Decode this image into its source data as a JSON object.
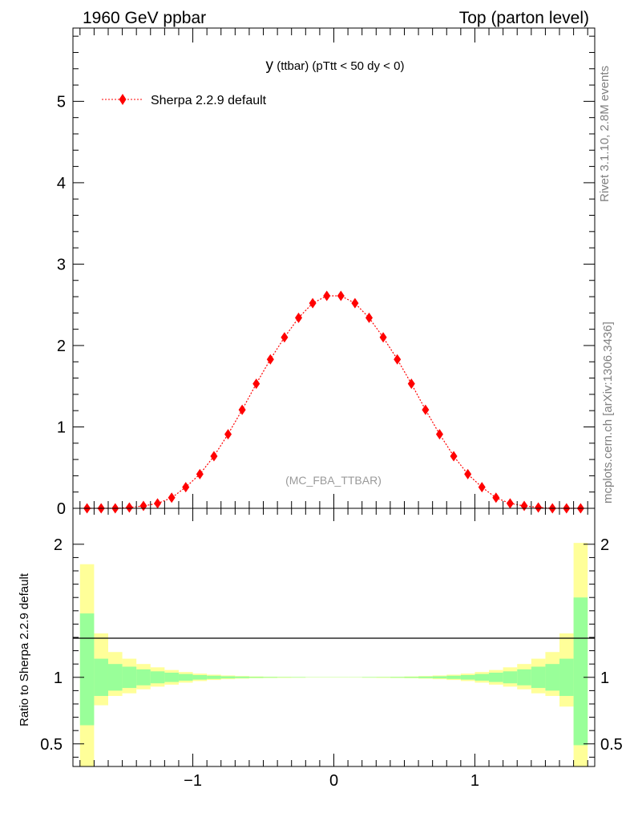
{
  "header": {
    "left": "1960 GeV ppbar",
    "right": "Top (parton level)"
  },
  "side_labels": {
    "rivet": "Rivet 3.1.10,  2.8M events",
    "mcplots": "mcplots.cern.ch [arXiv:1306.3436]"
  },
  "plot_title": {
    "main": "y",
    "detail": " (ttbar) (pTtt < 50 dy < 0)"
  },
  "legend": {
    "label": "Sherpa 2.2.9 default",
    "color": "#ff0000"
  },
  "watermark": "(MC_FBA_TTBAR)",
  "ratio_ylabel": "Ratio to Sherpa 2.2.9 default",
  "colors": {
    "series": "#ff0000",
    "band_inner": "#99ff99",
    "band_outer": "#ffff99",
    "side_text": "#808080"
  },
  "chart_data": [
    {
      "type": "line",
      "markers": "diamond",
      "line_style": "dotted",
      "xlim": [
        -1.85,
        1.85
      ],
      "ylim": [
        0,
        5.9
      ],
      "xticks": [
        -1,
        0,
        1
      ],
      "yticks": [
        0,
        1,
        2,
        3,
        4,
        5
      ],
      "ytick_labels": [
        "0",
        "1",
        "2",
        "3",
        "4",
        "5"
      ],
      "series": [
        {
          "name": "Sherpa 2.2.9 default",
          "x": [
            -1.75,
            -1.65,
            -1.55,
            -1.45,
            -1.35,
            -1.25,
            -1.15,
            -1.05,
            -0.95,
            -0.85,
            -0.75,
            -0.65,
            -0.55,
            -0.45,
            -0.35,
            -0.25,
            -0.15,
            -0.05,
            0.05,
            0.15,
            0.25,
            0.35,
            0.45,
            0.55,
            0.65,
            0.75,
            0.85,
            0.95,
            1.05,
            1.15,
            1.25,
            1.35,
            1.45,
            1.55,
            1.65,
            1.75
          ],
          "y": [
            0.0,
            0.0,
            0.0,
            0.01,
            0.03,
            0.06,
            0.13,
            0.26,
            0.42,
            0.64,
            0.91,
            1.21,
            1.53,
            1.83,
            2.1,
            2.34,
            2.52,
            2.61,
            2.61,
            2.52,
            2.34,
            2.1,
            1.83,
            1.53,
            1.21,
            0.91,
            0.64,
            0.42,
            0.26,
            0.13,
            0.06,
            0.03,
            0.01,
            0.0,
            0.0,
            0.0
          ]
        }
      ]
    },
    {
      "type": "area",
      "ylabel": "Ratio to Sherpa 2.2.9 default",
      "xlim": [
        -1.85,
        1.85
      ],
      "ylim": [
        0.33,
        2.27
      ],
      "xticks": [
        -1,
        0,
        1
      ],
      "xtick_labels": [
        "−1",
        "0",
        "1"
      ],
      "yticks": [
        0.5,
        1,
        2
      ],
      "ytick_labels": [
        "0.5",
        "1",
        "2"
      ],
      "reference": 1,
      "bin_edges": [
        -1.8,
        -1.7,
        -1.6,
        -1.5,
        -1.4,
        -1.3,
        -1.2,
        -1.1,
        -1.0,
        -0.9,
        -0.8,
        -0.7,
        -0.6,
        -0.5,
        -0.4,
        -0.3,
        -0.2,
        -0.1,
        0.0,
        0.1,
        0.2,
        0.3,
        0.4,
        0.5,
        0.6,
        0.7,
        0.8,
        0.9,
        1.0,
        1.1,
        1.2,
        1.3,
        1.4,
        1.5,
        1.6,
        1.7,
        1.8
      ],
      "inner_band": {
        "low": [
          0.64,
          0.86,
          0.9,
          0.92,
          0.94,
          0.955,
          0.965,
          0.975,
          0.983,
          0.988,
          0.992,
          0.994,
          0.996,
          0.997,
          0.998,
          0.998,
          0.999,
          0.999,
          0.999,
          0.999,
          0.998,
          0.998,
          0.997,
          0.996,
          0.994,
          0.992,
          0.988,
          0.983,
          0.975,
          0.965,
          0.955,
          0.94,
          0.92,
          0.9,
          0.86,
          0.49
        ],
        "high": [
          1.48,
          1.14,
          1.1,
          1.08,
          1.06,
          1.045,
          1.035,
          1.025,
          1.017,
          1.012,
          1.008,
          1.006,
          1.004,
          1.003,
          1.002,
          1.002,
          1.001,
          1.001,
          1.001,
          1.001,
          1.002,
          1.002,
          1.003,
          1.004,
          1.006,
          1.008,
          1.012,
          1.017,
          1.025,
          1.035,
          1.045,
          1.06,
          1.08,
          1.1,
          1.14,
          1.6
        ]
      },
      "outer_band": {
        "low": [
          0.3,
          0.79,
          0.86,
          0.88,
          0.91,
          0.93,
          0.945,
          0.96,
          0.972,
          0.98,
          0.986,
          0.99,
          0.993,
          0.995,
          0.996,
          0.997,
          0.998,
          0.998,
          0.998,
          0.998,
          0.997,
          0.996,
          0.995,
          0.993,
          0.99,
          0.986,
          0.98,
          0.972,
          0.96,
          0.945,
          0.93,
          0.91,
          0.88,
          0.86,
          0.78,
          0.3
        ],
        "high": [
          1.85,
          1.33,
          1.19,
          1.14,
          1.1,
          1.075,
          1.055,
          1.04,
          1.028,
          1.02,
          1.014,
          1.01,
          1.007,
          1.005,
          1.004,
          1.003,
          1.002,
          1.002,
          1.002,
          1.002,
          1.003,
          1.004,
          1.005,
          1.007,
          1.01,
          1.014,
          1.02,
          1.028,
          1.04,
          1.055,
          1.075,
          1.1,
          1.14,
          1.19,
          1.33,
          2.01
        ]
      }
    }
  ]
}
